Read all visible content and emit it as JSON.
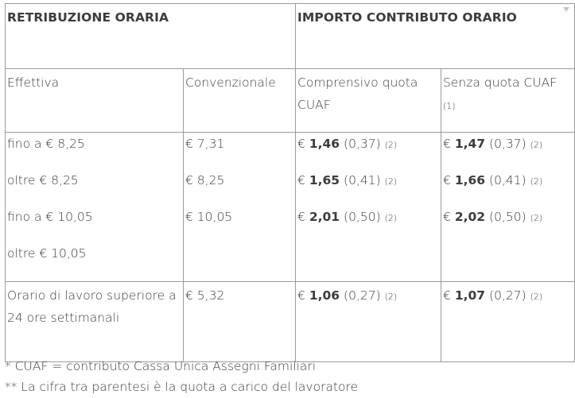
{
  "table": {
    "header": {
      "col1": "RETRIBUZIONE ORARIA",
      "col2": "IMPORTO CONTRIBUTO ORARIO"
    },
    "subheader": {
      "effettiva": "Effettiva",
      "convenzionale": "Convenzionale",
      "comprensivo": "Comprensivo quota CUAF",
      "senza": "Senza quota CUAF",
      "senza_note": "(1)"
    },
    "rates": {
      "effettiva": [
        "fino a € 8,25",
        "oltre € 8,25",
        "fino a € 10,05",
        "oltre € 10,05"
      ],
      "convenzionale": [
        "€ 7,31",
        "€ 8,25",
        "€ 10,05"
      ],
      "comprensivo": [
        {
          "euro": "€",
          "amount": "1,46",
          "worker": "(0,37)",
          "note": "(2)"
        },
        {
          "euro": "€",
          "amount": "1,65",
          "worker": "(0,41)",
          "note": "(2)"
        },
        {
          "euro": "€",
          "amount": "2,01",
          "worker": "(0,50)",
          "note": "(2)"
        }
      ],
      "senza": [
        {
          "euro": "€",
          "amount": "1,47",
          "worker": "(0,37)",
          "note": "(2)"
        },
        {
          "euro": "€",
          "amount": "1,66",
          "worker": "(0,41)",
          "note": "(2)"
        },
        {
          "euro": "€",
          "amount": "2,02",
          "worker": "(0,50)",
          "note": "(2)"
        }
      ]
    },
    "last_row": {
      "label": "Orario di lavoro superiore a 24 ore settimanali",
      "convenzionale": "€ 5,32",
      "comprensivo": {
        "euro": "€",
        "amount": "1,06",
        "worker": "(0,27)",
        "note": "(2)"
      },
      "senza": {
        "euro": "€",
        "amount": "1,07",
        "worker": "(0,27)",
        "note": "(2)"
      }
    }
  },
  "footnotes": {
    "cuaf": "* CUAF = contributo Cassa Unica Assegni Familiari",
    "parentheses": "** La cifra tra parentesi è la quota a carico del lavoratore"
  }
}
